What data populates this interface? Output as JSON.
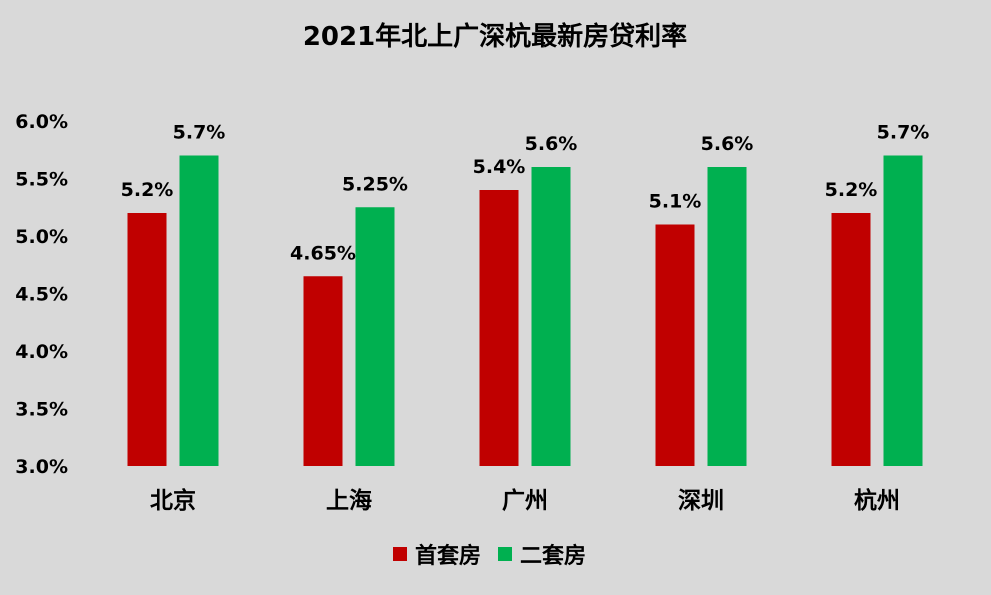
{
  "chart_data": {
    "type": "bar",
    "title": "2021年北上广深杭最新房贷利率",
    "xlabel": "",
    "ylabel": "",
    "categories": [
      "北京",
      "上海",
      "广州",
      "深圳",
      "杭州"
    ],
    "series": [
      {
        "name": "首套房",
        "color": "#c00000",
        "values": [
          5.2,
          4.65,
          5.4,
          5.1,
          5.2
        ],
        "labels": [
          "5.2%",
          "4.65%",
          "5.4%",
          "5.1%",
          "5.2%"
        ]
      },
      {
        "name": "二套房",
        "color": "#00b050",
        "values": [
          5.7,
          5.25,
          5.6,
          5.6,
          5.7
        ],
        "labels": [
          "5.7%",
          "5.25%",
          "5.6%",
          "5.6%",
          "5.7%"
        ]
      }
    ],
    "ylim": [
      3.0,
      6.0
    ],
    "yticks": [
      3.0,
      3.5,
      4.0,
      4.5,
      5.0,
      5.5,
      6.0
    ],
    "ytick_labels": [
      "3.0%",
      "3.5%",
      "4.0%",
      "4.5%",
      "5.0%",
      "5.5%",
      "6.0%"
    ],
    "grid": false,
    "legend_position": "bottom-center"
  }
}
